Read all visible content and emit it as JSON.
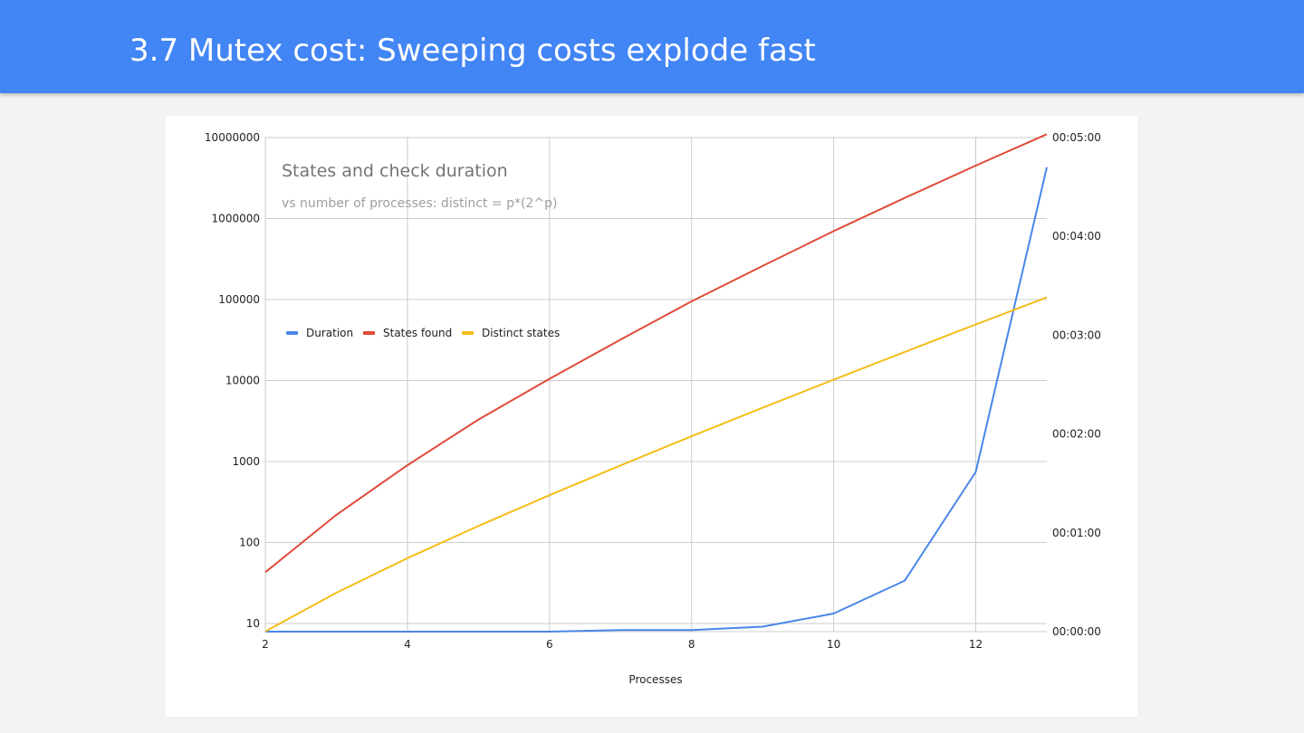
{
  "slide": {
    "title": "3.7 Mutex cost: Sweeping costs explode fast"
  },
  "chart_data": {
    "type": "line",
    "title": "States and check duration",
    "subtitle": "vs number of processes: distinct = p*(2^p)",
    "xlabel": "Processes",
    "ylabel": "",
    "ylabel_right": "",
    "xlim": [
      2,
      13
    ],
    "x_ticks": [
      2,
      4,
      6,
      8,
      10,
      12
    ],
    "left_axis": {
      "scale": "log",
      "range": [
        8,
        12000000
      ],
      "ticks": [
        "10",
        "100",
        "1000",
        "10000",
        "100000",
        "1000000",
        "10000000"
      ]
    },
    "right_axis": {
      "scale": "linear",
      "range_seconds": [
        0,
        300
      ],
      "ticks": [
        "00:00:00",
        "00:01:00",
        "00:02:00",
        "00:03:00",
        "00:04:00",
        "00:05:00"
      ]
    },
    "grid": true,
    "legend_position": "left, mid-plot",
    "x": [
      2,
      3,
      4,
      5,
      6,
      7,
      8,
      9,
      10,
      11,
      12,
      13
    ],
    "series": [
      {
        "name": "Duration",
        "axis": "right",
        "color": "#4a86e8",
        "values": [
          0,
          0,
          0,
          0,
          0,
          1,
          1,
          3,
          11,
          31,
          97,
          282
        ]
      },
      {
        "name": "States found",
        "axis": "left",
        "color": "#e04b3a",
        "values": [
          43,
          220,
          900,
          3300,
          10500,
          32000,
          95000,
          260000,
          700000,
          1800000,
          4500000,
          11000000
        ]
      },
      {
        "name": "Distinct states",
        "axis": "left",
        "color": "#f4bd1a",
        "values": [
          8,
          24,
          64,
          160,
          384,
          896,
          2048,
          4608,
          10240,
          22528,
          49152,
          106496
        ]
      }
    ]
  }
}
